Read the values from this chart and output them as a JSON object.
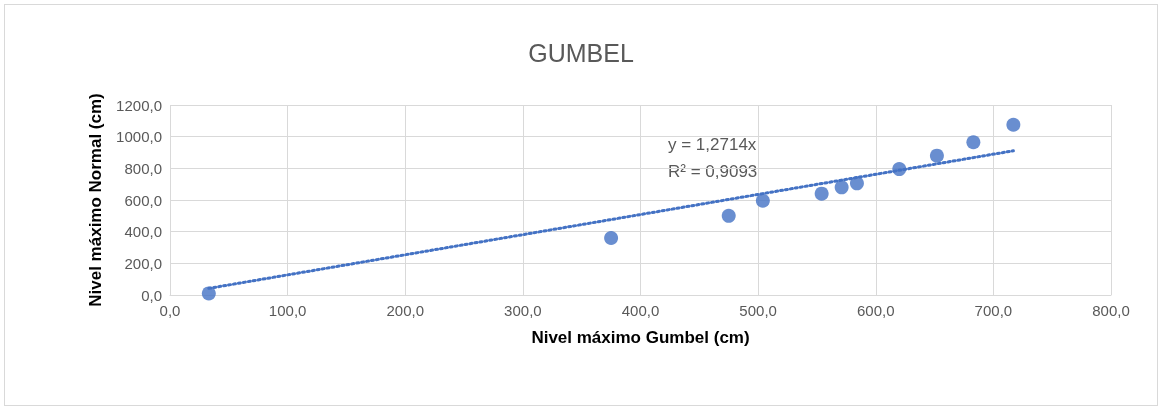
{
  "chart_data": {
    "type": "scatter",
    "title": "GUMBEL",
    "xlabel": "Nivel máximo Gumbel (cm)",
    "ylabel": "Nivel máximo Normal (cm)",
    "series": [
      {
        "color": "#4472c4",
        "marker": "circle",
        "x": [
          33,
          375,
          475,
          504,
          554,
          571,
          584,
          620,
          652,
          683,
          717
        ],
        "values": [
          10,
          360,
          500,
          595,
          640,
          680,
          705,
          795,
          880,
          965,
          1075
        ]
      },
      {
        "type": "line",
        "color": "#4472c4",
        "marker": "none",
        "line_style": "dotted",
        "x": [
          33,
          717
        ],
        "values": [
          42,
          911
        ]
      }
    ],
    "annotations": [
      "y = 1,2714x",
      "R² = 0,9093"
    ],
    "xlim": [
      0,
      800
    ],
    "ylim": [
      0,
      1200
    ],
    "xticks": [
      {
        "value": 0,
        "label": "0,0"
      },
      {
        "value": 100,
        "label": "100,0"
      },
      {
        "value": 200,
        "label": "200,0"
      },
      {
        "value": 300,
        "label": "300,0"
      },
      {
        "value": 400,
        "label": "400,0"
      },
      {
        "value": 500,
        "label": "500,0"
      },
      {
        "value": 600,
        "label": "600,0"
      },
      {
        "value": 700,
        "label": "700,0"
      },
      {
        "value": 800,
        "label": "800,0"
      }
    ],
    "yticks": [
      {
        "value": 0,
        "label": "0,0"
      },
      {
        "value": 200,
        "label": "200,0"
      },
      {
        "value": 400,
        "label": "400,0"
      },
      {
        "value": 600,
        "label": "600,0"
      },
      {
        "value": 800,
        "label": "800,0"
      },
      {
        "value": 1000,
        "label": "1000,0"
      },
      {
        "value": 1200,
        "label": "1200,0"
      }
    ],
    "grid": true
  }
}
